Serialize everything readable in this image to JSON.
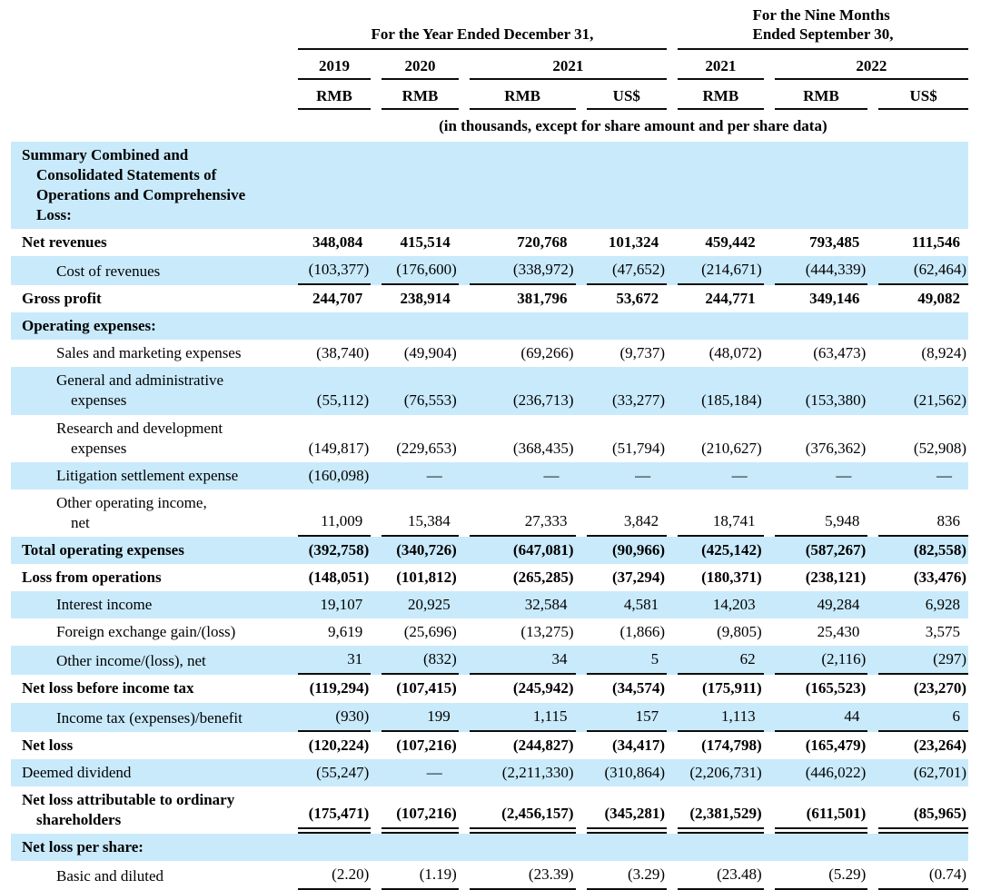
{
  "colors": {
    "row_highlight": "#c9eafb",
    "rule": "#0c0c0c",
    "text": "#000000"
  },
  "note": "(in thousands, except for share amount and per share data)",
  "header": {
    "group1": "For the Year Ended December 31,",
    "group2_line1": "For the Nine Months",
    "group2_line2": "Ended September 30,",
    "years": [
      {
        "label": "2019"
      },
      {
        "label": "2020"
      },
      {
        "label": "2021"
      },
      {
        "label": "2021"
      },
      {
        "label": "2022"
      }
    ],
    "currencies": [
      "RMB",
      "RMB",
      "RMB",
      "US$",
      "RMB",
      "RMB",
      "US$"
    ]
  },
  "rows": [
    {
      "label": "Summary Combined and\nConsolidated Statements of\nOperations and Comprehensive\nLoss:",
      "style": "section",
      "blue": true,
      "underline": "none",
      "values": null
    },
    {
      "label": "Net revenues",
      "style": "total",
      "blue": false,
      "underline": "none",
      "values": [
        "348,084",
        "415,514",
        "720,768",
        "101,324",
        "459,442",
        "793,485",
        "111,546"
      ]
    },
    {
      "label": "Cost of revenues",
      "style": "sub",
      "blue": true,
      "underline": "single",
      "values": [
        "(103,377)",
        "(176,600)",
        "(338,972)",
        "(47,652)",
        "(214,671)",
        "(444,339)",
        "(62,464)"
      ]
    },
    {
      "label": "Gross profit",
      "style": "total",
      "blue": false,
      "underline": "none",
      "values": [
        "244,707",
        "238,914",
        "381,796",
        "53,672",
        "244,771",
        "349,146",
        "49,082"
      ]
    },
    {
      "label": "Operating expenses:",
      "style": "section",
      "blue": true,
      "underline": "none",
      "values": null
    },
    {
      "label": "Sales and marketing expenses",
      "style": "sub",
      "blue": false,
      "underline": "none",
      "values": [
        "(38,740)",
        "(49,904)",
        "(69,266)",
        "(9,737)",
        "(48,072)",
        "(63,473)",
        "(8,924)"
      ]
    },
    {
      "label": "General and administrative\nexpenses",
      "style": "sub",
      "blue": true,
      "underline": "none",
      "values": [
        "(55,112)",
        "(76,553)",
        "(236,713)",
        "(33,277)",
        "(185,184)",
        "(153,380)",
        "(21,562)"
      ]
    },
    {
      "label": "Research and development\nexpenses",
      "style": "sub",
      "blue": false,
      "underline": "none",
      "values": [
        "(149,817)",
        "(229,653)",
        "(368,435)",
        "(51,794)",
        "(210,627)",
        "(376,362)",
        "(52,908)"
      ]
    },
    {
      "label": "Litigation settlement expense",
      "style": "sub",
      "blue": true,
      "underline": "none",
      "values": [
        "(160,098)",
        "—",
        "—",
        "—",
        "—",
        "—",
        "—"
      ]
    },
    {
      "label": "Other operating income,\nnet",
      "style": "sub",
      "blue": false,
      "underline": "single",
      "values": [
        "11,009",
        "15,384",
        "27,333",
        "3,842",
        "18,741",
        "5,948",
        "836"
      ]
    },
    {
      "label": "Total operating expenses",
      "style": "total",
      "blue": true,
      "underline": "none",
      "values": [
        "(392,758)",
        "(340,726)",
        "(647,081)",
        "(90,966)",
        "(425,142)",
        "(587,267)",
        "(82,558)"
      ]
    },
    {
      "label": "Loss from operations",
      "style": "total",
      "blue": false,
      "underline": "none",
      "values": [
        "(148,051)",
        "(101,812)",
        "(265,285)",
        "(37,294)",
        "(180,371)",
        "(238,121)",
        "(33,476)"
      ]
    },
    {
      "label": "Interest income",
      "style": "sub",
      "blue": true,
      "underline": "none",
      "values": [
        "19,107",
        "20,925",
        "32,584",
        "4,581",
        "14,203",
        "49,284",
        "6,928"
      ]
    },
    {
      "label": "Foreign exchange gain/(loss)",
      "style": "sub",
      "blue": false,
      "underline": "none",
      "values": [
        "9,619",
        "(25,696)",
        "(13,275)",
        "(1,866)",
        "(9,805)",
        "25,430",
        "3,575"
      ]
    },
    {
      "label": "Other income/(loss), net",
      "style": "sub",
      "blue": true,
      "underline": "single",
      "values": [
        "31",
        "(832)",
        "34",
        "5",
        "62",
        "(2,116)",
        "(297)"
      ]
    },
    {
      "label": "Net loss before income tax",
      "style": "total",
      "blue": false,
      "underline": "none",
      "values": [
        "(119,294)",
        "(107,415)",
        "(245,942)",
        "(34,574)",
        "(175,911)",
        "(165,523)",
        "(23,270)"
      ]
    },
    {
      "label": "Income tax (expenses)/benefit",
      "style": "sub",
      "blue": true,
      "underline": "single",
      "values": [
        "(930)",
        "199",
        "1,115",
        "157",
        "1,113",
        "44",
        "6"
      ]
    },
    {
      "label": "Net loss",
      "style": "total",
      "blue": false,
      "underline": "none",
      "values": [
        "(120,224)",
        "(107,216)",
        "(244,827)",
        "(34,417)",
        "(174,798)",
        "(165,479)",
        "(23,264)"
      ]
    },
    {
      "label": "Deemed dividend",
      "style": "plain",
      "blue": true,
      "underline": "none",
      "values": [
        "(55,247)",
        "—",
        "(2,211,330)",
        "(310,864)",
        "(2,206,731)",
        "(446,022)",
        "(62,701)"
      ]
    },
    {
      "label": "Net loss attributable to ordinary\nshareholders",
      "style": "total",
      "blue": false,
      "underline": "double",
      "values": [
        "(175,471)",
        "(107,216)",
        "(2,456,157)",
        "(345,281)",
        "(2,381,529)",
        "(611,501)",
        "(85,965)"
      ]
    },
    {
      "label": "Net loss per share:",
      "style": "section",
      "blue": true,
      "underline": "none",
      "values": null
    },
    {
      "label": "Basic and diluted",
      "style": "sub",
      "blue": false,
      "underline": "single",
      "values": [
        "(2.20)",
        "(1.19)",
        "(23.39)",
        "(3.29)",
        "(23.48)",
        "(5.29)",
        "(0.74)"
      ]
    }
  ]
}
